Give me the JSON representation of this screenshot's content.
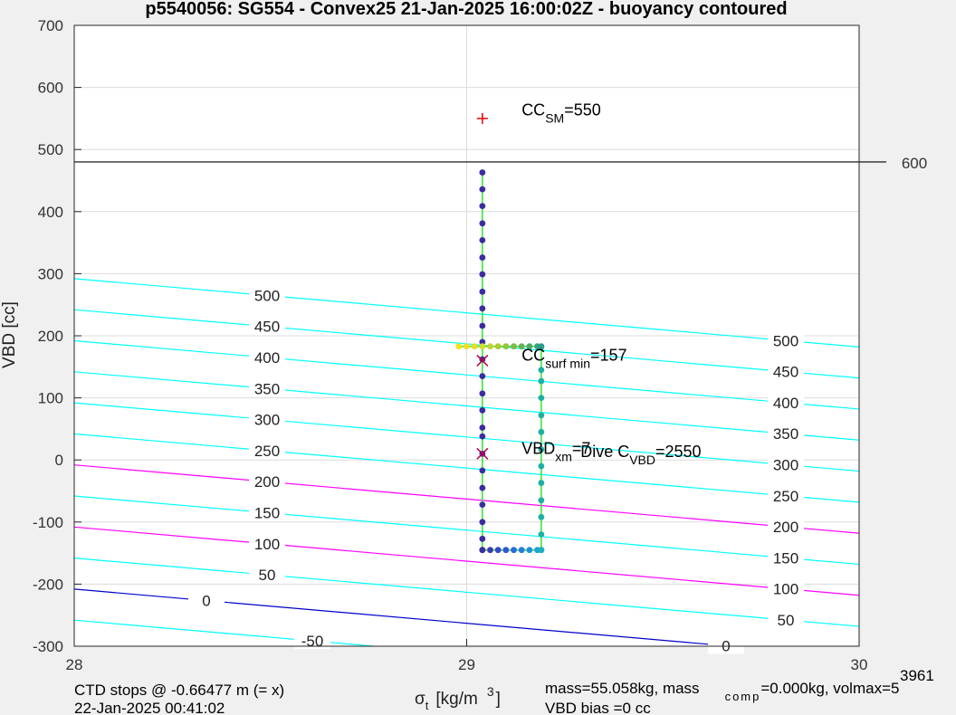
{
  "chart_data": {
    "type": "scatter",
    "title": "p5540056: SG554 - Convex25 21-Jan-2025 16:00:02Z - buoyancy contoured",
    "xlabel_sym": "σ",
    "xlabel_sub": "t",
    "xlabel_unit_pre": "[kg/m",
    "xlabel_unit_sup": "3",
    "xlabel_unit_post": "]",
    "ylabel": "VBD [cc]",
    "xlim": [
      28,
      30
    ],
    "ylim": [
      -300,
      700
    ],
    "xticks": [
      "28",
      "29",
      "30"
    ],
    "yticks": [
      "700",
      "600",
      "500",
      "400",
      "300",
      "200",
      "100",
      "0",
      "-100",
      "-200",
      "-300"
    ],
    "grid": true,
    "hline": {
      "y": 480,
      "label": "600"
    },
    "contours": [
      {
        "level": "-50",
        "color": "#00ffff",
        "y_at_28": -258,
        "y_at_30": -368,
        "label_left": "-50",
        "label_right": ""
      },
      {
        "level": "0",
        "color": "#0000cc",
        "y_at_28": -208,
        "y_at_30": -318,
        "label_left": "0",
        "label_right": "0"
      },
      {
        "level": "50",
        "color": "#00ffff",
        "y_at_28": -158,
        "y_at_30": -268,
        "label_left": "50",
        "label_right": "50"
      },
      {
        "level": "100",
        "color": "#ff00ff",
        "y_at_28": -108,
        "y_at_30": -218,
        "label_left": "100",
        "label_right": "100"
      },
      {
        "level": "150",
        "color": "#00ffff",
        "y_at_28": -58,
        "y_at_30": -168,
        "label_left": "150",
        "label_right": "150"
      },
      {
        "level": "200",
        "color": "#ff00ff",
        "y_at_28": -8,
        "y_at_30": -118,
        "label_left": "200",
        "label_right": "200"
      },
      {
        "level": "250",
        "color": "#00ffff",
        "y_at_28": 42,
        "y_at_30": -68,
        "label_left": "250",
        "label_right": "250"
      },
      {
        "level": "300",
        "color": "#00ffff",
        "y_at_28": 92,
        "y_at_30": -18,
        "label_left": "300",
        "label_right": "300"
      },
      {
        "level": "350",
        "color": "#00ffff",
        "y_at_28": 142,
        "y_at_30": 32,
        "label_left": "350",
        "label_right": "350"
      },
      {
        "level": "400",
        "color": "#00ffff",
        "y_at_28": 192,
        "y_at_30": 82,
        "label_left": "400",
        "label_right": "400"
      },
      {
        "level": "450",
        "color": "#00ffff",
        "y_at_28": 242,
        "y_at_30": 132,
        "label_left": "450",
        "label_right": "450"
      },
      {
        "level": "500",
        "color": "#00ffff",
        "y_at_28": 292,
        "y_at_30": 182,
        "label_left": "500",
        "label_right": "500"
      }
    ],
    "series": [
      {
        "role": "dive",
        "color": "#3a2da0",
        "points": [
          [
            29.04,
            463
          ],
          [
            29.04,
            436
          ],
          [
            29.04,
            409
          ],
          [
            29.04,
            381
          ],
          [
            29.04,
            354
          ],
          [
            29.04,
            326
          ],
          [
            29.04,
            299
          ],
          [
            29.04,
            271
          ],
          [
            29.04,
            244
          ],
          [
            29.04,
            216
          ],
          [
            29.04,
            190
          ],
          [
            29.04,
            162
          ],
          [
            29.04,
            135
          ],
          [
            29.04,
            107
          ],
          [
            29.04,
            80
          ],
          [
            29.04,
            52
          ],
          [
            29.04,
            38
          ],
          [
            29.04,
            10
          ],
          [
            29.04,
            -17
          ],
          [
            29.04,
            -45
          ],
          [
            29.04,
            -72
          ],
          [
            29.04,
            -100
          ],
          [
            29.04,
            -127
          ],
          [
            29.04,
            -145
          ]
        ]
      },
      {
        "role": "climb",
        "color": "#1fb0a4",
        "points": [
          [
            29.19,
            182
          ],
          [
            29.19,
            145
          ],
          [
            29.19,
            127
          ],
          [
            29.19,
            100
          ],
          [
            29.19,
            72
          ],
          [
            29.19,
            45
          ],
          [
            29.19,
            17
          ],
          [
            29.19,
            -10
          ],
          [
            29.19,
            -37
          ],
          [
            29.19,
            -65
          ],
          [
            29.19,
            -92
          ],
          [
            29.19,
            -120
          ],
          [
            29.19,
            -145
          ]
        ]
      },
      {
        "role": "surface",
        "color": "gradient",
        "points": [
          [
            28.98,
            183
          ],
          [
            29.0,
            183
          ],
          [
            29.02,
            183
          ],
          [
            29.04,
            183
          ],
          [
            29.06,
            183
          ],
          [
            29.08,
            183
          ],
          [
            29.1,
            183
          ],
          [
            29.12,
            183
          ],
          [
            29.14,
            183
          ],
          [
            29.16,
            183
          ],
          [
            29.18,
            183
          ],
          [
            29.19,
            183
          ]
        ]
      },
      {
        "role": "bottom",
        "color": "#2d5be0",
        "points": [
          [
            29.04,
            -145
          ],
          [
            29.06,
            -145
          ],
          [
            29.08,
            -145
          ],
          [
            29.1,
            -145
          ],
          [
            29.12,
            -145
          ],
          [
            29.14,
            -145
          ],
          [
            29.16,
            -145
          ],
          [
            29.18,
            -145
          ],
          [
            29.19,
            -145
          ]
        ]
      }
    ],
    "markers": [
      {
        "x": 29.04,
        "y": 550,
        "symbol": "+",
        "color": "#e00000"
      },
      {
        "x": 29.04,
        "y": 160,
        "symbol": "x",
        "color": "#c0004a"
      },
      {
        "x": 29.04,
        "y": 10,
        "symbol": "x",
        "color": "#c0004a"
      }
    ],
    "annotations": [
      {
        "main": "CC",
        "sub": "SM",
        "post": "=550",
        "x": 29.14,
        "y": 555
      },
      {
        "main": "CC",
        "sub": "surf min",
        "post": "=157",
        "x": 29.14,
        "y": 160
      },
      {
        "main": "VBD",
        "sub": "xm",
        "post": "=7",
        "x": 29.14,
        "y": 10
      },
      {
        "main": "Dive C",
        "sub": "VBD",
        "post": "=2550",
        "x": 29.29,
        "y": 5
      }
    ]
  },
  "footer": {
    "ctd_line1": "CTD stops @ -0.66477 m (= x)",
    "ctd_line2": "22-Jan-2025 00:41:02",
    "mass_line1": "mass=55.058kg, mass",
    "mass_comp_sub": "comp",
    "mass_line1_post": "=0.000kg, volmax=5",
    "mass_line2": "VBD bias =0 cc",
    "corner_number": "3961"
  }
}
